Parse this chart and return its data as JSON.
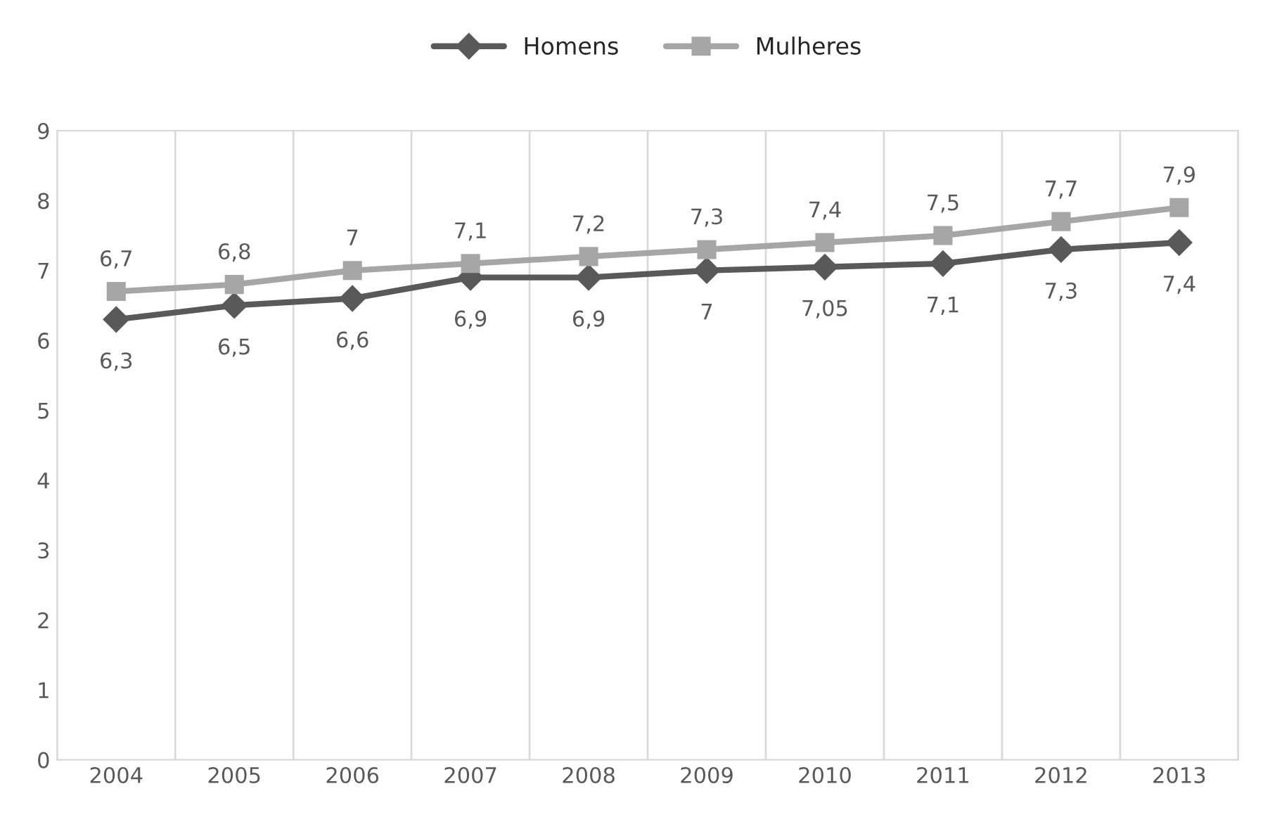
{
  "chart_data": {
    "type": "line",
    "categories": [
      "2004",
      "2005",
      "2006",
      "2007",
      "2008",
      "2009",
      "2010",
      "2011",
      "2012",
      "2013"
    ],
    "series": [
      {
        "name": "Homens",
        "color": "#595959",
        "marker": "diamond",
        "values": [
          6.3,
          6.5,
          6.6,
          6.9,
          6.9,
          7,
          7.05,
          7.1,
          7.3,
          7.4
        ],
        "value_labels": [
          "6,3",
          "6,5",
          "6,6",
          "6,9",
          "6,9",
          "7",
          "7,05",
          "7,1",
          "7,3",
          "7,4"
        ]
      },
      {
        "name": "Mulheres",
        "color": "#a6a6a6",
        "marker": "square",
        "values": [
          6.7,
          6.8,
          7,
          7.1,
          7.2,
          7.3,
          7.4,
          7.5,
          7.7,
          7.9
        ],
        "value_labels": [
          "6,7",
          "6,8",
          "7",
          "7,1",
          "7,2",
          "7,3",
          "7,4",
          "7,5",
          "7,7",
          "7,9"
        ]
      }
    ],
    "ylim": [
      0,
      9
    ],
    "yticks": [
      0,
      1,
      2,
      3,
      4,
      5,
      6,
      7,
      8,
      9
    ],
    "grid": "x",
    "legend": "top",
    "line_style": "solid"
  }
}
